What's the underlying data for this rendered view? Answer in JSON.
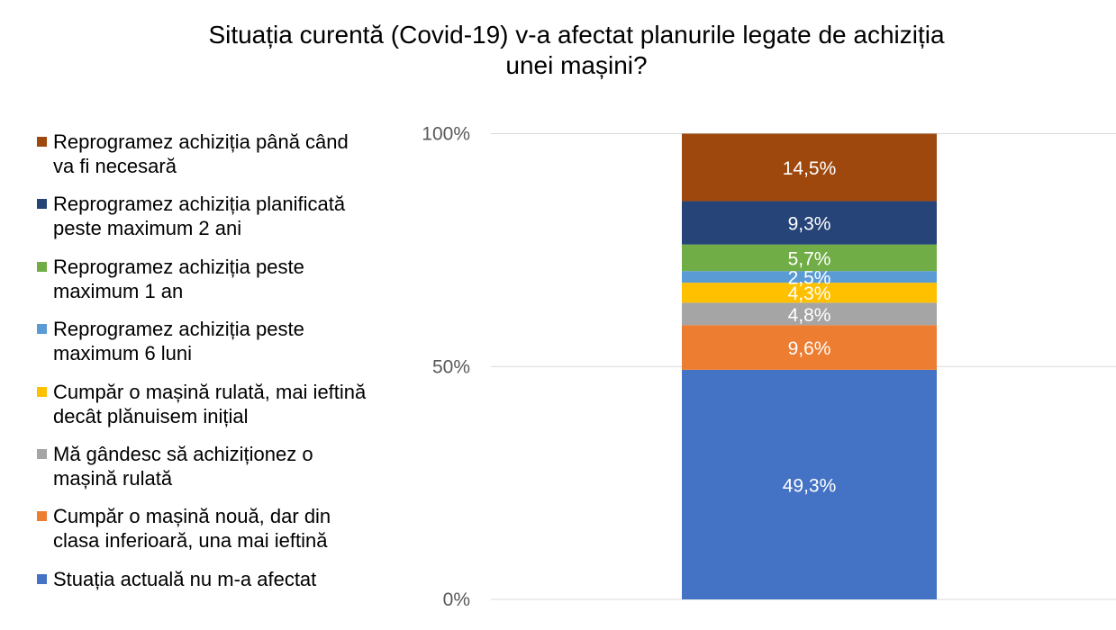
{
  "chart_data": {
    "type": "bar",
    "stacked": true,
    "title": "Situația curentă (Covid-19) v-a afectat planurile legate de achiziția\nunei mașini?",
    "y_ticks": [
      "0%",
      "50%",
      "100%"
    ],
    "ylim": [
      0,
      100
    ],
    "grid": true,
    "legend_position": "left",
    "series": [
      {
        "name": "Stuația actuală nu m-a afectat",
        "value": 49.3,
        "label": "49,3%",
        "color": "#4472C4"
      },
      {
        "name": "Cumpăr o mașină nouă, dar din\nclasa inferioară, una mai ieftină",
        "value": 9.6,
        "label": "9,6%",
        "color": "#ED7D31"
      },
      {
        "name": "Mă gândesc să achiziționez o\nmașină rulată",
        "value": 4.8,
        "label": "4,8%",
        "color": "#A5A5A5"
      },
      {
        "name": "Cumpăr o mașină rulată, mai ieftină\ndecât plănuisem inițial",
        "value": 4.3,
        "label": "4,3%",
        "color": "#FFC000"
      },
      {
        "name": "Reprogramez achiziția peste\nmaximum 6 luni",
        "value": 2.5,
        "label": "2,5%",
        "color": "#5B9BD5"
      },
      {
        "name": "Reprogramez achiziția peste\nmaximum 1 an",
        "value": 5.7,
        "label": "5,7%",
        "color": "#70AD47"
      },
      {
        "name": "Reprogramez achiziția planificată\npeste maximum 2 ani",
        "value": 9.3,
        "label": "9,3%",
        "color": "#264478"
      },
      {
        "name": "Reprogramez achiziția până când\nva fi necesară",
        "value": 14.5,
        "label": "14,5%",
        "color": "#9E480E"
      }
    ]
  }
}
